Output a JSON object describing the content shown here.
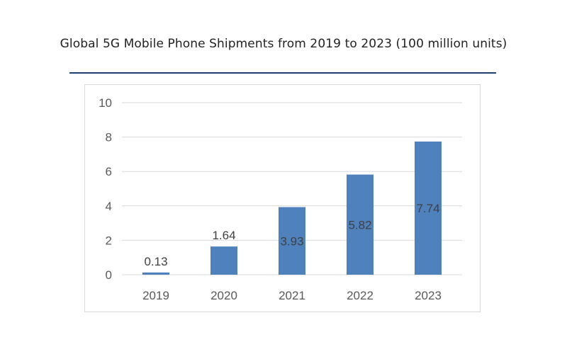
{
  "title": "Global 5G Mobile Phone Shipments from 2019 to 2023 (100 million units)",
  "colors": {
    "bar": "#4f81bd",
    "grid": "#d9d9d9",
    "title_rule": "#1f3f73"
  },
  "chart_data": {
    "type": "bar",
    "title": "Global 5G Mobile Phone Shipments from 2019 to 2023 (100 million units)",
    "categories": [
      "2019",
      "2020",
      "2021",
      "2022",
      "2023"
    ],
    "values": [
      0.13,
      1.64,
      3.93,
      5.82,
      7.74
    ],
    "data_labels": [
      "0.13",
      "1.64",
      "3.93",
      "5.82",
      "7.74"
    ],
    "xlabel": "",
    "ylabel": "",
    "ylim": [
      0,
      10
    ],
    "yticks": [
      0,
      2,
      4,
      6,
      8,
      10
    ],
    "ytick_labels": [
      "0",
      "2",
      "4",
      "6",
      "8",
      "10"
    ],
    "grid": true,
    "legend": false
  }
}
